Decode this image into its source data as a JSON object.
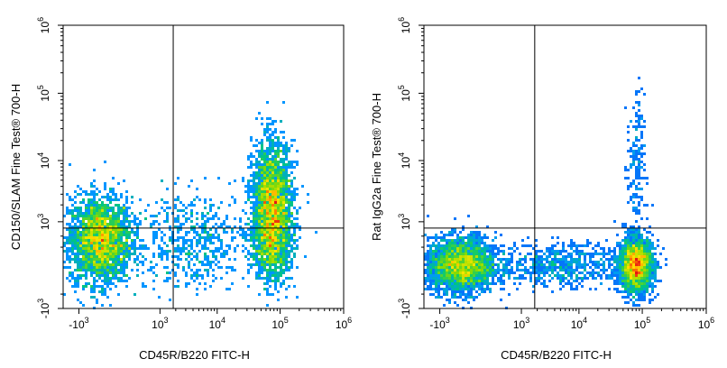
{
  "chart_data": [
    {
      "type": "scatter",
      "subtype": "flow-cytometry-density-dot-plot",
      "xlabel": "CD45R/B220 FITC-H",
      "ylabel": "CD150/SLAM Fine Test® 700-H",
      "x_scale": "biexponential",
      "y_scale": "biexponential",
      "xlim": [
        -2000,
        1000000
      ],
      "ylim": [
        -1000,
        1000000
      ],
      "x_ticks": [
        {
          "value": -1000,
          "base": "-10",
          "exp": "3"
        },
        {
          "value": 1000,
          "base": "10",
          "exp": "3"
        },
        {
          "value": 10000,
          "base": "10",
          "exp": "4"
        },
        {
          "value": 100000,
          "base": "10",
          "exp": "5"
        },
        {
          "value": 1000000,
          "base": "10",
          "exp": "6"
        }
      ],
      "y_ticks": [
        {
          "value": -1000,
          "base": "-10",
          "exp": "3"
        },
        {
          "value": 1000,
          "base": "10",
          "exp": "3"
        },
        {
          "value": 10000,
          "base": "10",
          "exp": "4"
        },
        {
          "value": 100000,
          "base": "10",
          "exp": "5"
        },
        {
          "value": 1000000,
          "base": "10",
          "exp": "6"
        }
      ],
      "quadrant_gate": {
        "x": 1800,
        "y": 750
      },
      "clusters": [
        {
          "x": -300,
          "y": 400,
          "count": 2600,
          "spread_x": 0.55,
          "spread_y": 0.7
        },
        {
          "x": 75000,
          "y": 2000,
          "count": 2400,
          "spread_x": 0.35,
          "spread_y": 1.0
        },
        {
          "x": 4000,
          "y": 400,
          "count": 550,
          "spread_x": 1.0,
          "spread_y": 0.8
        },
        {
          "x": 75000,
          "y": 300,
          "count": 700,
          "spread_x": 0.35,
          "spread_y": 0.6
        }
      ],
      "grid": false,
      "legend": "none"
    },
    {
      "type": "scatter",
      "subtype": "flow-cytometry-density-dot-plot",
      "xlabel": "CD45R/B220 FITC-H",
      "ylabel": "Rat IgG2a Fine Test® 700-H",
      "x_scale": "biexponential",
      "y_scale": "biexponential",
      "xlim": [
        -2000,
        1000000
      ],
      "ylim": [
        -1000,
        1000000
      ],
      "x_ticks": [
        {
          "value": -1000,
          "base": "-10",
          "exp": "3"
        },
        {
          "value": 1000,
          "base": "10",
          "exp": "3"
        },
        {
          "value": 10000,
          "base": "10",
          "exp": "4"
        },
        {
          "value": 100000,
          "base": "10",
          "exp": "5"
        },
        {
          "value": 1000000,
          "base": "10",
          "exp": "6"
        }
      ],
      "y_ticks": [
        {
          "value": -1000,
          "base": "-10",
          "exp": "3"
        },
        {
          "value": 1000,
          "base": "10",
          "exp": "3"
        },
        {
          "value": 10000,
          "base": "10",
          "exp": "4"
        },
        {
          "value": 100000,
          "base": "10",
          "exp": "5"
        },
        {
          "value": 1000000,
          "base": "10",
          "exp": "6"
        }
      ],
      "quadrant_gate": {
        "x": 1800,
        "y": 750
      },
      "clusters": [
        {
          "x": -300,
          "y": 0,
          "count": 2800,
          "spread_x": 0.6,
          "spread_y": 0.45
        },
        {
          "x": 80000,
          "y": 0,
          "count": 2200,
          "spread_x": 0.3,
          "spread_y": 0.45
        },
        {
          "x": 5000,
          "y": 0,
          "count": 650,
          "spread_x": 1.1,
          "spread_y": 0.35
        },
        {
          "x": 80000,
          "y": 8000,
          "count": 160,
          "spread_x": 0.15,
          "spread_y": 1.2
        }
      ],
      "grid": false,
      "legend": "none"
    }
  ]
}
